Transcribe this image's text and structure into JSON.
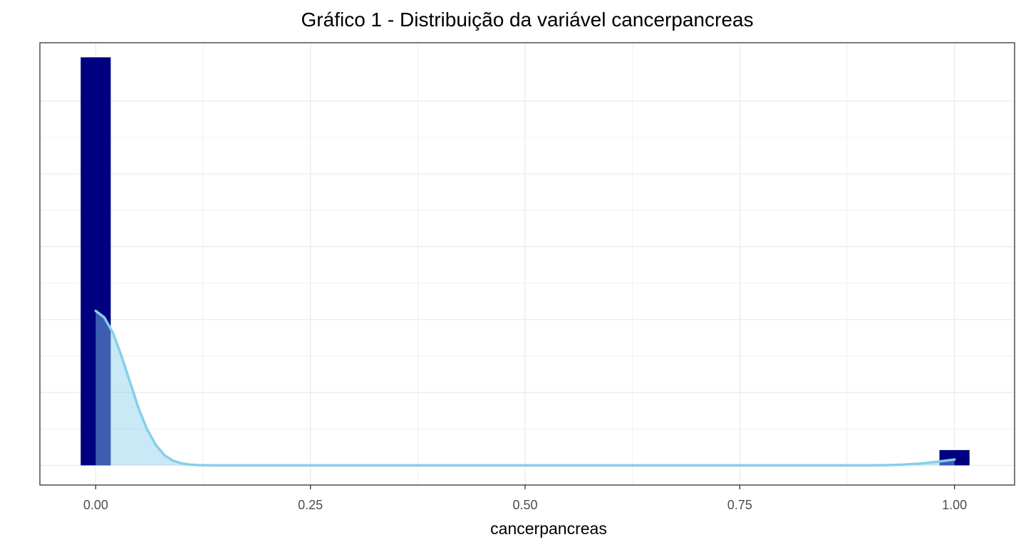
{
  "chart_data": {
    "type": "bar",
    "title": "Gráfico 1 - Distribuição da variável cancerpancreas",
    "xlabel": "cancerpancreas",
    "ylabel": "",
    "xlim": [
      -0.065,
      1.07
    ],
    "ylim": [
      -0.27,
      5.8
    ],
    "x_ticks": [
      0.0,
      0.25,
      0.5,
      0.75,
      1.0
    ],
    "x_tick_labels": [
      "0.00",
      "0.25",
      "0.50",
      "0.75",
      "1.00"
    ],
    "y_gridlines": [
      0,
      1,
      2,
      3,
      4,
      5
    ],
    "y_tick_labels_visible": false,
    "grid": true,
    "legend": "none",
    "bars": [
      {
        "x": 0.0,
        "width": 0.035,
        "value": 5.6
      },
      {
        "x": 1.0,
        "width": 0.035,
        "value": 0.21
      }
    ],
    "density": {
      "x": [
        0.0,
        0.01,
        0.02,
        0.03,
        0.04,
        0.05,
        0.06,
        0.07,
        0.08,
        0.09,
        0.1,
        0.11,
        0.12,
        0.13,
        0.14,
        0.2,
        0.4,
        0.6,
        0.8,
        0.9,
        0.92,
        0.94,
        0.96,
        0.98,
        1.0
      ],
      "y": [
        2.12,
        2.03,
        1.82,
        1.5,
        1.14,
        0.78,
        0.49,
        0.28,
        0.14,
        0.064,
        0.027,
        0.01,
        0.004,
        0.001,
        0.0,
        0.0,
        0.0,
        0.0,
        0.0,
        0.0,
        0.003,
        0.01,
        0.025,
        0.05,
        0.08
      ]
    },
    "colors": {
      "bars": "#000080",
      "density_line": "#87ceeb",
      "density_fill": "#87ceeb",
      "panel_border": "#333333",
      "grid": "#ebebeb"
    }
  }
}
